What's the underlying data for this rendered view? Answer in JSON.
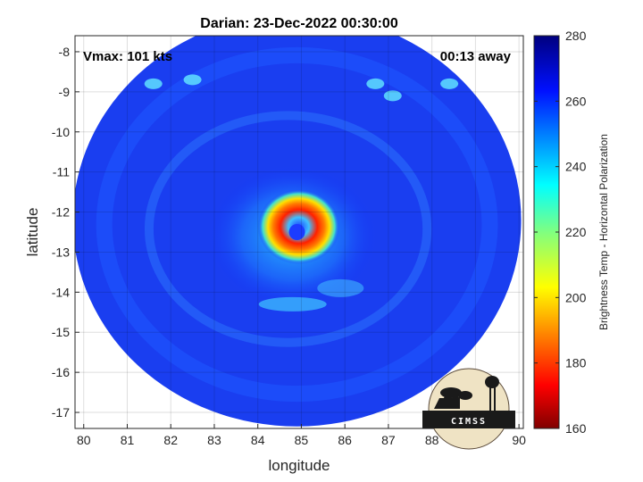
{
  "chart_data": {
    "type": "heatmap",
    "title": "Darian: 23-Dec-2022 00:30:00",
    "xlabel": "longitude",
    "ylabel": "latitude",
    "xlim": [
      79.8,
      90.1
    ],
    "ylim": [
      -17.4,
      -7.6
    ],
    "xticks": [
      80,
      81,
      82,
      83,
      84,
      85,
      86,
      87,
      88,
      89,
      90
    ],
    "yticks": [
      -8,
      -9,
      -10,
      -11,
      -12,
      -13,
      -14,
      -15,
      -16,
      -17
    ],
    "grid": true,
    "swath": {
      "center_lon": 84.9,
      "center_lat": -12.2,
      "radius_deg": 5.15
    },
    "storm_center": {
      "lon": 84.9,
      "lat": -12.5
    },
    "colorbar": {
      "label": "Brightness Temp - Horizontal Polarization",
      "range": [
        160,
        280
      ],
      "ticks": [
        160,
        180,
        200,
        220,
        240,
        260,
        280
      ],
      "colormap": "jet"
    },
    "annotations": {
      "vmax": "Vmax: 101 kts",
      "away": "00:13 away"
    }
  },
  "logo": {
    "text": "CIMSS"
  }
}
